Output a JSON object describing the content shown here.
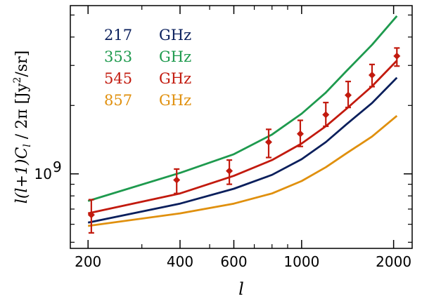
{
  "chart_data": {
    "type": "line",
    "x_scale": "log",
    "y_scale": "log",
    "xlim": [
      175,
      2300
    ],
    "ylim": [
      470000000,
      5500000000
    ],
    "xlabel": "l",
    "ylabel": "l(l+1)C_l / 2π   [Jy²/sr]",
    "ylabel_parts": {
      "main": "l(l+1)C",
      "sub": "l",
      "rest": " / 2π   [Jy",
      "sup": "2",
      "unit": "/sr]"
    },
    "x_ticks": [
      {
        "value": 200,
        "label": "200"
      },
      {
        "value": 400,
        "label": "400"
      },
      {
        "value": 600,
        "label": "600"
      },
      {
        "value": 1000,
        "label": "1000"
      },
      {
        "value": 2000,
        "label": "2000"
      }
    ],
    "y_ticks": [
      {
        "value": 1000000000,
        "label_base": "10",
        "label_exp": "9"
      }
    ],
    "series": [
      {
        "name": "217 GHz",
        "color": "#0a1f5c",
        "x": [
          200,
          400,
          600,
          800,
          1000,
          1200,
          1400,
          1700,
          2050
        ],
        "y": [
          610000000,
          740000000,
          860000000,
          990000000,
          1160000000,
          1380000000,
          1650000000,
          2050000000,
          2650000000
        ]
      },
      {
        "name": "353 GHz",
        "color": "#1e9a4e",
        "x": [
          200,
          400,
          600,
          800,
          1000,
          1200,
          1400,
          1700,
          2050
        ],
        "y": [
          760000000,
          1010000000,
          1220000000,
          1490000000,
          1840000000,
          2280000000,
          2830000000,
          3700000000,
          4950000000
        ]
      },
      {
        "name": "545 GHz",
        "color": "#c21a0e",
        "x": [
          200,
          400,
          600,
          800,
          1000,
          1200,
          1400,
          1700,
          2050
        ],
        "y": [
          670000000,
          820000000,
          980000000,
          1150000000,
          1360000000,
          1620000000,
          1930000000,
          2430000000,
          3150000000
        ]
      },
      {
        "name": "857 GHz",
        "color": "#e0900e",
        "x": [
          200,
          400,
          600,
          800,
          1000,
          1200,
          1400,
          1700,
          2050
        ],
        "y": [
          590000000,
          670000000,
          740000000,
          820000000,
          930000000,
          1070000000,
          1230000000,
          1460000000,
          1800000000
        ]
      }
    ],
    "data_points": {
      "name": "545 GHz data",
      "color": "#c21a0e",
      "marker": "diamond",
      "points": [
        {
          "x": 205,
          "y": 660000000,
          "lo": 550000000,
          "hi": 770000000
        },
        {
          "x": 390,
          "y": 940000000,
          "lo": 820000000,
          "hi": 1050000000
        },
        {
          "x": 580,
          "y": 1030000000,
          "lo": 900000000,
          "hi": 1150000000
        },
        {
          "x": 780,
          "y": 1380000000,
          "lo": 1180000000,
          "hi": 1570000000
        },
        {
          "x": 990,
          "y": 1500000000,
          "lo": 1320000000,
          "hi": 1720000000
        },
        {
          "x": 1200,
          "y": 1820000000,
          "lo": 1620000000,
          "hi": 2060000000
        },
        {
          "x": 1420,
          "y": 2220000000,
          "lo": 1960000000,
          "hi": 2550000000
        },
        {
          "x": 1700,
          "y": 2720000000,
          "lo": 2420000000,
          "hi": 3030000000
        },
        {
          "x": 2050,
          "y": 3300000000,
          "lo": 2980000000,
          "hi": 3580000000
        }
      ]
    },
    "legend": [
      {
        "freq": "217",
        "unit": "GHz",
        "color": "#0a1f5c"
      },
      {
        "freq": "353",
        "unit": "GHz",
        "color": "#1e9a4e"
      },
      {
        "freq": "545",
        "unit": "GHz",
        "color": "#c21a0e"
      },
      {
        "freq": "857",
        "unit": "GHz",
        "color": "#e0900e"
      }
    ],
    "legend_position": "top-left",
    "grid": false
  }
}
